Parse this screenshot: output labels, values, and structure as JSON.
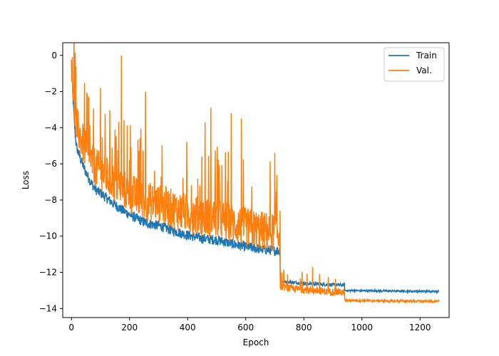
{
  "chart_data": {
    "type": "line",
    "title": "",
    "xlabel": "Epoch",
    "ylabel": "Loss",
    "xlim": [
      -30,
      1300
    ],
    "ylim": [
      -14.5,
      0.7
    ],
    "xticks": [
      0,
      200,
      400,
      600,
      800,
      1000,
      1200
    ],
    "yticks": [
      0,
      -2,
      -4,
      -6,
      -8,
      -10,
      -12,
      -14
    ],
    "xtick_labels": [
      "0",
      "200",
      "400",
      "600",
      "800",
      "1000",
      "1200"
    ],
    "ytick_labels": [
      "0",
      "−2",
      "−4",
      "−6",
      "−8",
      "−10",
      "−12",
      "−14"
    ],
    "grid": false,
    "legend_position": "top-right",
    "num_epochs": 1266,
    "series": [
      {
        "name": "Train",
        "color": "#1f77b4",
        "values_described_by_segments": [
          {
            "from": 0,
            "to": 20,
            "start": -0.5,
            "end": -5.2
          },
          {
            "from": 20,
            "to": 100,
            "start": -5.2,
            "end": -7.6
          },
          {
            "from": 100,
            "to": 300,
            "start": -7.6,
            "end": -9.4
          },
          {
            "from": 300,
            "to": 500,
            "start": -9.4,
            "end": -10.2
          },
          {
            "from": 500,
            "to": 718,
            "start": -10.2,
            "end": -10.8
          },
          {
            "from": 719,
            "to": 940,
            "start": -12.5,
            "end": -12.7
          },
          {
            "from": 941,
            "to": 1266,
            "start": -13.0,
            "end": -13.05
          }
        ]
      },
      {
        "name": "Val.",
        "color": "#ff7f0e",
        "values_described_by_segments": [
          {
            "from": 0,
            "to": 20,
            "start": -0.1,
            "end": -4.0
          },
          {
            "from": 20,
            "to": 100,
            "start": -4.0,
            "end": -6.4
          },
          {
            "from": 100,
            "to": 300,
            "start": -6.4,
            "end": -8.2
          },
          {
            "from": 300,
            "to": 500,
            "start": -8.2,
            "end": -9.0
          },
          {
            "from": 500,
            "to": 718,
            "start": -9.0,
            "end": -9.8
          },
          {
            "from": 719,
            "to": 940,
            "start": -12.8,
            "end": -13.1
          },
          {
            "from": 941,
            "to": 1266,
            "start": -13.55,
            "end": -13.6
          }
        ],
        "notable_spikes": [
          {
            "x": 3,
            "y": -0.1
          },
          {
            "x": 15,
            "y": -0.6
          },
          {
            "x": 60,
            "y": -2.3
          },
          {
            "x": 100,
            "y": -1.8
          },
          {
            "x": 172,
            "y": 0.0
          },
          {
            "x": 255,
            "y": -2.0
          },
          {
            "x": 460,
            "y": -3.7
          },
          {
            "x": 480,
            "y": -2.9
          },
          {
            "x": 550,
            "y": -3.2
          },
          {
            "x": 585,
            "y": -3.5
          },
          {
            "x": 700,
            "y": -5.4
          },
          {
            "x": 718,
            "y": -8.6
          },
          {
            "x": 830,
            "y": -11.7
          }
        ]
      }
    ]
  }
}
